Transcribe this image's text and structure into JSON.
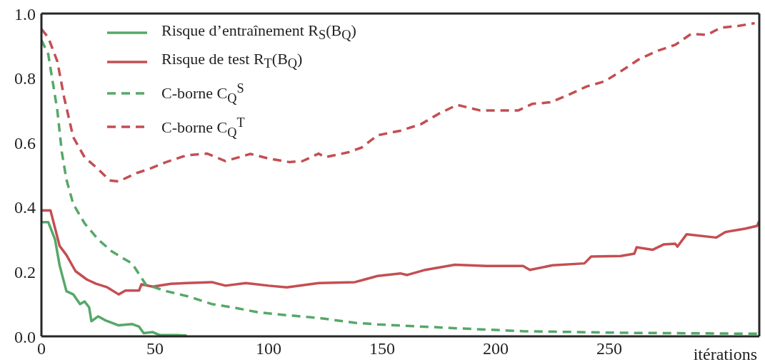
{
  "chart_data": {
    "type": "line",
    "xlabel": "itérations",
    "xlim": [
      0,
      316
    ],
    "xticks": [
      0,
      50,
      100,
      150,
      200,
      250
    ],
    "ylim": [
      0,
      1
    ],
    "yticks": [
      {
        "value": 0,
        "label": "0.0"
      },
      {
        "value": 0.2,
        "label": "0.2"
      },
      {
        "value": 0.4,
        "label": "0.4"
      },
      {
        "value": 0.6,
        "label": "0.6"
      },
      {
        "value": 0.8,
        "label": "0.8"
      },
      {
        "value": 1,
        "label": "1.0"
      }
    ],
    "legend": "top left",
    "marker": "none",
    "series": [
      {
        "name": "Risque d’entraînement R$_{S}$(B$_{Q}$)",
        "color": "#55a868",
        "line_style": "solid",
        "x": [
          0,
          3,
          6,
          8,
          11,
          14,
          17,
          19,
          21,
          22,
          25,
          28,
          34,
          40,
          43,
          45,
          49,
          52,
          60,
          64
        ],
        "values": [
          0.354,
          0.354,
          0.3,
          0.22,
          0.14,
          0.13,
          0.1,
          0.108,
          0.09,
          0.047,
          0.062,
          0.05,
          0.034,
          0.038,
          0.03,
          0.01,
          0.013,
          0.004,
          0.004,
          0.002
        ]
      },
      {
        "name": "Risque de test R$_{T}$(B$_{Q}$)",
        "color": "#c44e52",
        "line_style": "solid",
        "x": [
          0,
          4,
          8,
          11,
          15,
          20,
          24,
          29,
          34,
          37,
          43,
          44,
          49,
          57,
          75,
          81,
          90,
          100,
          108,
          122,
          138,
          148,
          158,
          161,
          169,
          182,
          196,
          212,
          215,
          225,
          239,
          242,
          255,
          261,
          262,
          269,
          274,
          279,
          280,
          284,
          297,
          301,
          310,
          315,
          316
        ],
        "values": [
          0.39,
          0.39,
          0.28,
          0.252,
          0.202,
          0.176,
          0.163,
          0.152,
          0.13,
          0.142,
          0.142,
          0.161,
          0.154,
          0.163,
          0.168,
          0.157,
          0.165,
          0.157,
          0.152,
          0.165,
          0.168,
          0.187,
          0.195,
          0.19,
          0.206,
          0.222,
          0.218,
          0.218,
          0.206,
          0.22,
          0.226,
          0.247,
          0.249,
          0.256,
          0.276,
          0.268,
          0.285,
          0.287,
          0.278,
          0.316,
          0.306,
          0.323,
          0.334,
          0.342,
          0.357
        ]
      },
      {
        "name": "C-borne C$_{Q}$$^{S}$",
        "color": "#55a868",
        "line_style": "dashed",
        "x": [
          0,
          3,
          7,
          9,
          11,
          14,
          19,
          25,
          31,
          40,
          46,
          55,
          65,
          75,
          84,
          95,
          106,
          122,
          138,
          148,
          180,
          212,
          255,
          316
        ],
        "values": [
          0.918,
          0.874,
          0.7,
          0.57,
          0.486,
          0.41,
          0.35,
          0.3,
          0.263,
          0.225,
          0.16,
          0.14,
          0.123,
          0.1,
          0.09,
          0.075,
          0.067,
          0.057,
          0.042,
          0.037,
          0.026,
          0.016,
          0.011,
          0.008
        ]
      },
      {
        "name": "C-borne C$_{Q}$$^{T}$",
        "color": "#c44e52",
        "line_style": "dashed",
        "x": [
          0,
          3,
          7,
          10,
          14,
          19,
          25,
          30,
          34,
          42,
          48,
          55,
          64,
          73,
          81,
          92,
          100,
          109,
          115,
          122,
          125,
          135,
          141,
          148,
          158,
          167,
          175,
          183,
          193,
          210,
          216,
          224,
          232,
          240,
          248,
          257,
          263,
          271,
          279,
          286,
          293,
          299,
          307,
          314
        ],
        "values": [
          0.952,
          0.926,
          0.852,
          0.74,
          0.617,
          0.555,
          0.518,
          0.483,
          0.48,
          0.506,
          0.52,
          0.54,
          0.561,
          0.566,
          0.543,
          0.565,
          0.551,
          0.54,
          0.543,
          0.566,
          0.555,
          0.57,
          0.585,
          0.623,
          0.637,
          0.657,
          0.69,
          0.717,
          0.7,
          0.7,
          0.72,
          0.725,
          0.748,
          0.774,
          0.79,
          0.83,
          0.858,
          0.884,
          0.903,
          0.937,
          0.934,
          0.956,
          0.962,
          0.97
        ]
      }
    ]
  }
}
